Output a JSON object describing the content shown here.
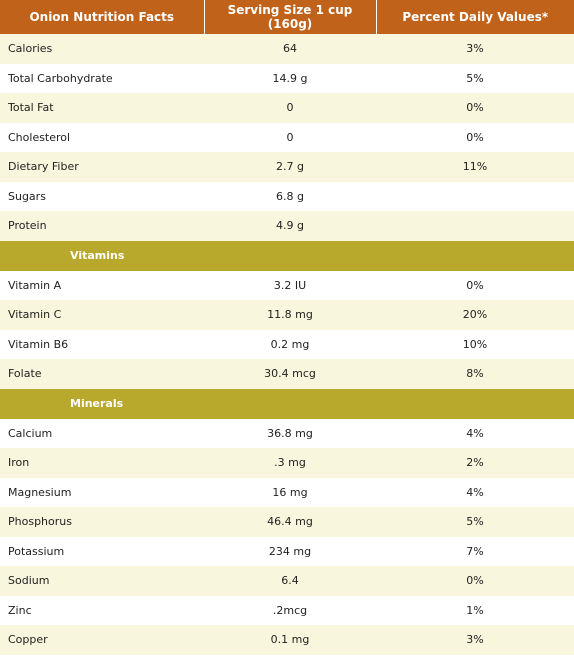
{
  "header": {
    "col1": "Onion Nutrition Facts",
    "col2": "Serving Size 1 cup (160g)",
    "col3": "Percent Daily Values*"
  },
  "colors": {
    "header_bg": "#c0621a",
    "section_bg": "#b8a82c",
    "alt_row_bg": "#f8f6dc"
  },
  "nutrients": [
    {
      "name": "Calories",
      "amount": "64",
      "percent": "3%"
    },
    {
      "name": "Total Carbohydrate",
      "amount": "14.9 g",
      "percent": "5%"
    },
    {
      "name": "Total Fat",
      "amount": "0",
      "percent": "0%"
    },
    {
      "name": "Cholesterol",
      "amount": "0",
      "percent": "0%"
    },
    {
      "name": "Dietary Fiber",
      "amount": "2.7 g",
      "percent": "11%"
    },
    {
      "name": "Sugars",
      "amount": "6.8 g",
      "percent": ""
    },
    {
      "name": "Protein",
      "amount": "4.9 g",
      "percent": ""
    }
  ],
  "vitamins": {
    "title": "Vitamins",
    "items": [
      {
        "name": "Vitamin A",
        "amount": "3.2 IU",
        "percent": "0%"
      },
      {
        "name": "Vitamin C",
        "amount": "11.8 mg",
        "percent": "20%"
      },
      {
        "name": "Vitamin B6",
        "amount": "0.2 mg",
        "percent": "10%"
      },
      {
        "name": "Folate",
        "amount": "30.4 mcg",
        "percent": "8%"
      }
    ]
  },
  "minerals": {
    "title": "Minerals",
    "items": [
      {
        "name": "Calcium",
        "amount": "36.8 mg",
        "percent": "4%"
      },
      {
        "name": "Iron",
        "amount": ".3 mg",
        "percent": "2%"
      },
      {
        "name": "Magnesium",
        "amount": "16 mg",
        "percent": "4%"
      },
      {
        "name": "Phosphorus",
        "amount": "46.4 mg",
        "percent": "5%"
      },
      {
        "name": "Potassium",
        "amount": "234 mg",
        "percent": "7%"
      },
      {
        "name": "Sodium",
        "amount": "6.4",
        "percent": "0%"
      },
      {
        "name": "Zinc",
        "amount": ".2mcg",
        "percent": "1%"
      },
      {
        "name": "Copper",
        "amount": "0.1 mg",
        "percent": "3%"
      }
    ]
  }
}
